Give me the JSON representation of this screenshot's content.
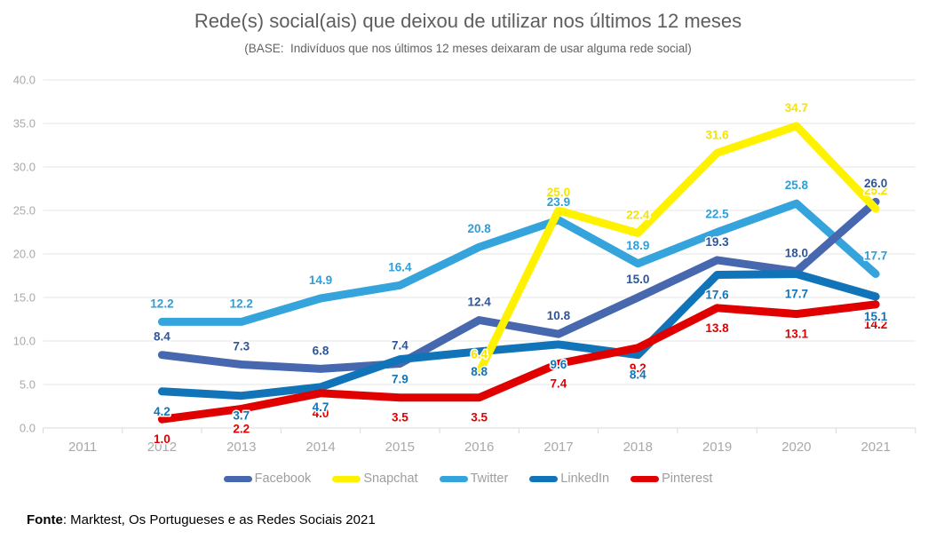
{
  "chart_data": {
    "type": "line",
    "title": "Rede(s) social(ais) que deixou de utilizar nos últimos 12 meses",
    "subtitle": "(BASE:  Indivíduos que nos últimos 12 meses deixaram de usar alguma rede social)",
    "x_labels": [
      "2011",
      "2012",
      "2013",
      "2014",
      "2015",
      "2016",
      "2017",
      "2018",
      "2019",
      "2020",
      "2021"
    ],
    "ylim": [
      0,
      40
    ],
    "ytick_step": 5,
    "ytick_format": "one-decimal",
    "grid": "horizontal",
    "legend_position": "bottom",
    "grid_color": "#e6e6e6",
    "axis_color": "#d9d9d9",
    "axis_text_color": "#a9a9a9",
    "series": [
      {
        "name": "Facebook",
        "color": "#4767ae",
        "label_color": "#2e5597",
        "label_side": "above",
        "values": [
          null,
          8.4,
          7.3,
          6.8,
          7.4,
          12.4,
          10.8,
          15.0,
          19.3,
          18.0,
          26.0
        ]
      },
      {
        "name": "Snapchat",
        "color": "#fff200",
        "label_color": "#f5e400",
        "label_side": "above",
        "values": [
          null,
          null,
          null,
          null,
          null,
          6.4,
          25.0,
          22.4,
          31.6,
          34.7,
          25.2
        ]
      },
      {
        "name": "Twitter",
        "color": "#35a3dc",
        "label_color": "#2e9fd8",
        "label_side": "above",
        "values": [
          null,
          12.2,
          12.2,
          14.9,
          16.4,
          20.8,
          23.9,
          18.9,
          22.5,
          25.8,
          17.7
        ]
      },
      {
        "name": "LinkedIn",
        "color": "#1274b8",
        "label_color": "#1274b8",
        "label_side": "below",
        "values": [
          null,
          4.2,
          3.7,
          4.7,
          7.9,
          8.8,
          9.6,
          8.4,
          17.6,
          17.7,
          15.1
        ]
      },
      {
        "name": "Pinterest",
        "color": "#e00000",
        "label_color": "#e00000",
        "label_side": "below",
        "values": [
          null,
          1.0,
          2.2,
          4.0,
          3.5,
          3.5,
          7.4,
          9.2,
          13.8,
          13.1,
          14.2
        ]
      }
    ]
  },
  "footer": {
    "label": "Fonte",
    "text": ": Marktest, Os Portugueses e as Redes Sociais 2021"
  }
}
